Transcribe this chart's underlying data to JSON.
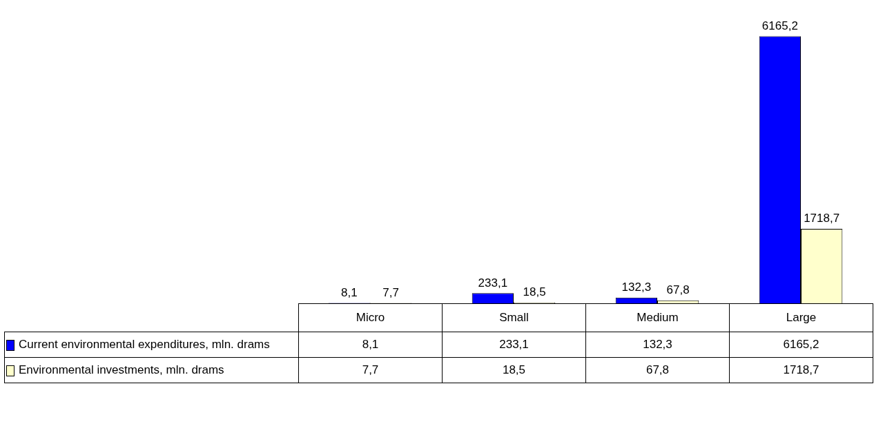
{
  "chart_data": {
    "type": "bar",
    "categories": [
      "Micro",
      "Small",
      "Medium",
      "Large"
    ],
    "series": [
      {
        "name": "Current environmental expenditures, mln. drams",
        "color": "#0000ff",
        "values": [
          8.1,
          233.1,
          132.3,
          6165.2
        ],
        "value_labels": [
          "8,1",
          "233,1",
          "132,3",
          "6165,2"
        ]
      },
      {
        "name": "Environmental investments, mln. drams",
        "color": "#ffffcc",
        "values": [
          7.7,
          18.5,
          67.8,
          1718.7
        ],
        "value_labels": [
          "7,7",
          "18,5",
          "67,8",
          "1718,7"
        ]
      }
    ],
    "legend": "bottom",
    "tick_labels": "x"
  }
}
